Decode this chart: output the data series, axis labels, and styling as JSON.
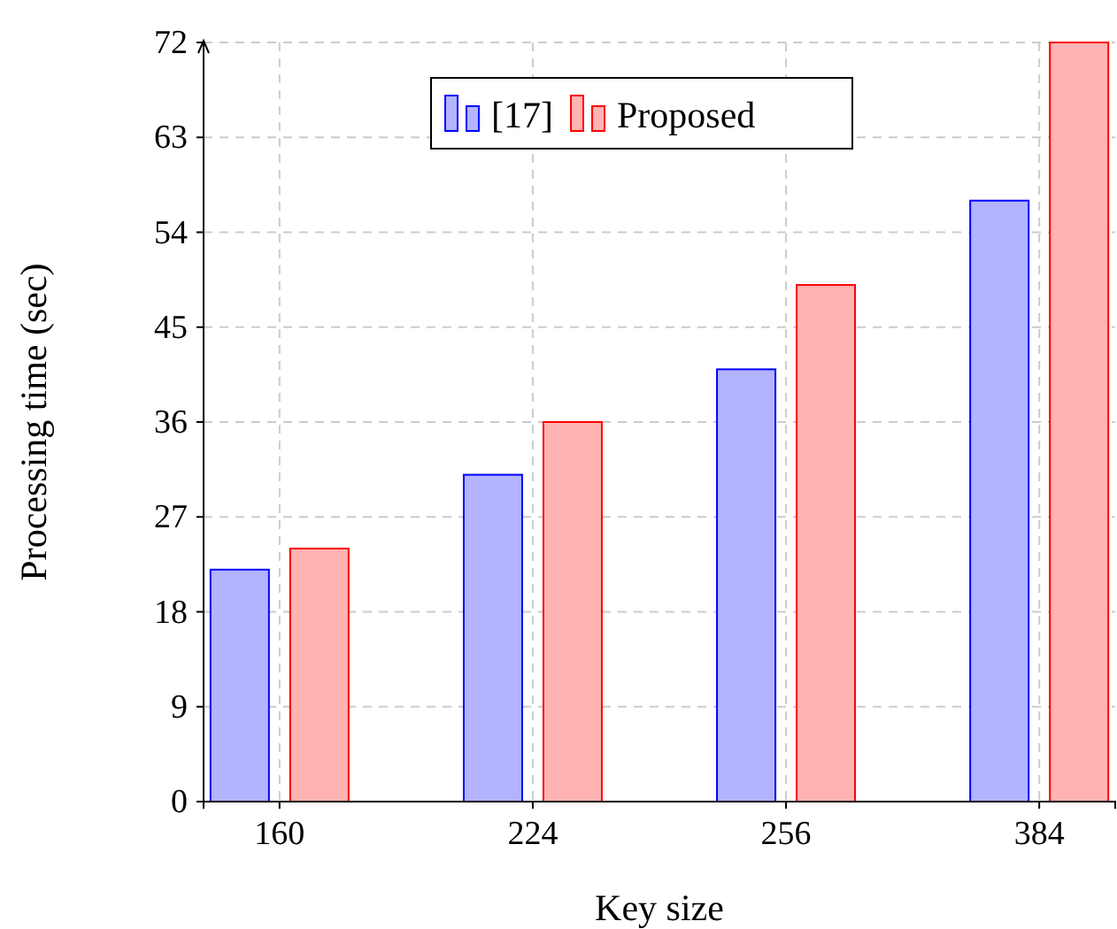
{
  "chart_data": {
    "type": "bar",
    "xlabel": "Key size",
    "ylabel": "Processing time (sec)",
    "categories": [
      "160",
      "224",
      "256",
      "384"
    ],
    "series": [
      {
        "name": "[17]",
        "color": "#0000ff",
        "values": [
          22,
          31,
          41,
          57
        ]
      },
      {
        "name": "Proposed",
        "color": "#ff0000",
        "values": [
          24,
          36,
          49,
          72
        ]
      }
    ],
    "ylim": [
      0,
      72
    ],
    "yticks": [
      0,
      9,
      18,
      27,
      36,
      45,
      54,
      63,
      72
    ],
    "grid": true,
    "legend": "top"
  }
}
